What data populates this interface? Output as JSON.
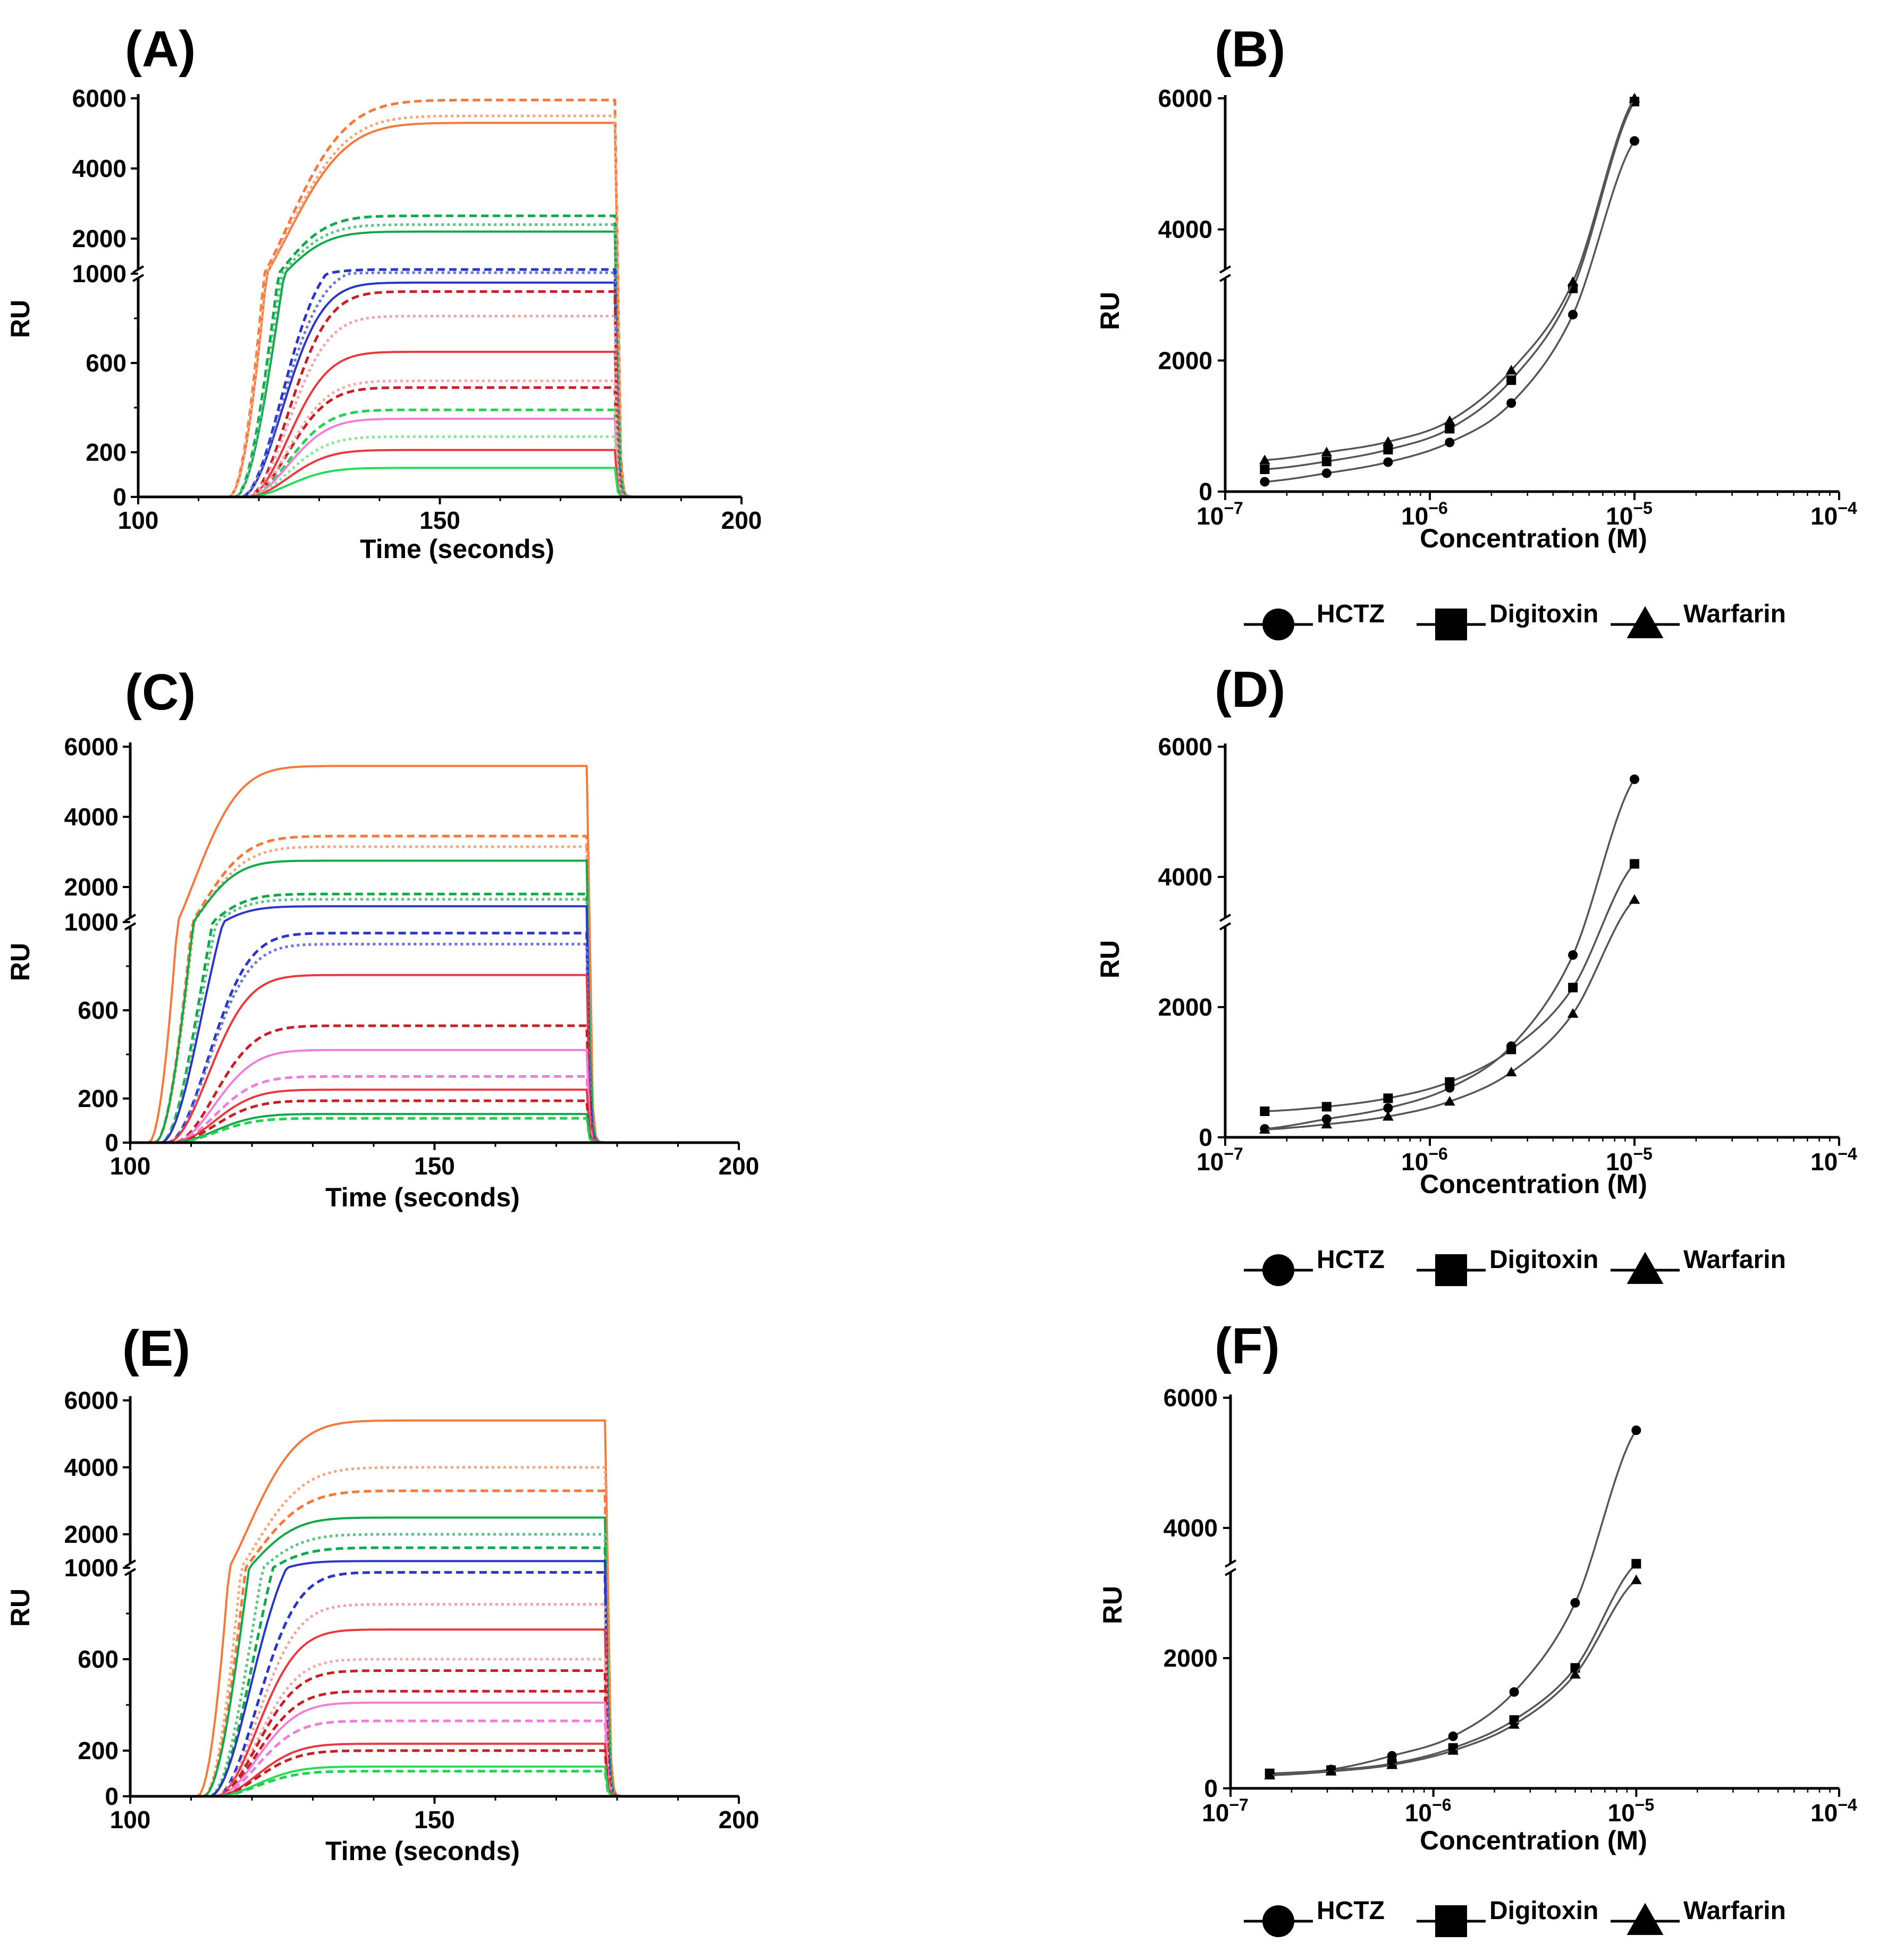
{
  "chart_data": [
    {
      "id": "A",
      "panel_label": "(A)",
      "type": "line",
      "xlabel": "Time (seconds)",
      "ylabel": "RU",
      "xlim": [
        100,
        200
      ],
      "xticks": [
        "100",
        "150",
        "200"
      ],
      "yticks": [
        "0",
        "200",
        "600",
        "1000",
        "2000",
        "4000",
        "6000"
      ],
      "y_axis_break": [
        1000,
        2000
      ],
      "injection": {
        "start": 110,
        "end": 179
      },
      "series": [
        {
          "color": "#f4793b",
          "style": "solid",
          "plateau": 5300,
          "onset": 115,
          "tau": 13
        },
        {
          "color": "#f4793b",
          "style": "dashed",
          "plateau": 5950,
          "onset": 115,
          "tau": 13
        },
        {
          "color": "#f7a57d",
          "style": "dotted",
          "plateau": 5500,
          "onset": 115,
          "tau": 13
        },
        {
          "color": "#0fa84a",
          "style": "solid",
          "plateau": 2200,
          "onset": 116,
          "tau": 10
        },
        {
          "color": "#0fa84a",
          "style": "dashed",
          "plateau": 2650,
          "onset": 116,
          "tau": 10
        },
        {
          "color": "#5cc27f",
          "style": "dotted",
          "plateau": 2400,
          "onset": 116,
          "tau": 10
        },
        {
          "color": "#2b35c6",
          "style": "solid",
          "plateau": 960,
          "onset": 117,
          "tau": 9
        },
        {
          "color": "#2b35c6",
          "style": "dashed",
          "plateau": 1120,
          "onset": 117,
          "tau": 9
        },
        {
          "color": "#6a72db",
          "style": "dotted",
          "plateau": 1030,
          "onset": 117,
          "tau": 9
        },
        {
          "color": "#e8393e",
          "style": "solid",
          "plateau": 650,
          "onset": 118,
          "tau": 9
        },
        {
          "color": "#c81f26",
          "style": "dashed",
          "plateau": 920,
          "onset": 118,
          "tau": 9
        },
        {
          "color": "#f2a2a4",
          "style": "dotted",
          "plateau": 810,
          "onset": 118,
          "tau": 9
        },
        {
          "color": "#c81f26",
          "style": "dashed",
          "plateau": 490,
          "onset": 118,
          "tau": 9
        },
        {
          "color": "#25d052",
          "style": "dashed",
          "plateau": 390,
          "onset": 118,
          "tau": 9
        },
        {
          "color": "#ee7fd8",
          "style": "solid",
          "plateau": 350,
          "onset": 118,
          "tau": 9
        },
        {
          "color": "#f4a8a8",
          "style": "dotted",
          "plateau": 520,
          "onset": 118,
          "tau": 9
        },
        {
          "color": "#8be39a",
          "style": "dotted",
          "plateau": 270,
          "onset": 118,
          "tau": 9
        },
        {
          "color": "#e8393e",
          "style": "solid",
          "plateau": 210,
          "onset": 118,
          "tau": 9
        },
        {
          "color": "#22dd55",
          "style": "solid",
          "plateau": 130,
          "onset": 118,
          "tau": 9
        }
      ]
    },
    {
      "id": "B",
      "panel_label": "(B)",
      "type": "scatter",
      "xlabel": "Concentration (M)",
      "ylabel": "RU",
      "xscale": "log",
      "xlim_exp": [
        -7,
        -4
      ],
      "xticks": [
        "10",
        "10",
        "10",
        "10"
      ],
      "xtick_exp": [
        "−7",
        "−6",
        "−5",
        "−4"
      ],
      "yticks": [
        "0",
        "2000",
        "4000",
        "6000"
      ],
      "ylim": [
        0,
        6000
      ],
      "x": [
        1.56e-07,
        3.13e-07,
        6.25e-07,
        1.25e-06,
        2.5e-06,
        5e-06,
        1e-05
      ],
      "series": [
        {
          "name": "HCTZ",
          "marker": "circle",
          "values": [
            150,
            280,
            450,
            750,
            1350,
            2700,
            5350
          ]
        },
        {
          "name": "Digitoxin",
          "marker": "square",
          "values": [
            340,
            460,
            640,
            960,
            1700,
            3100,
            5950
          ]
        },
        {
          "name": "Warfarin",
          "marker": "triangle",
          "values": [
            480,
            600,
            760,
            1080,
            1850,
            3200,
            6000
          ]
        }
      ]
    },
    {
      "id": "C",
      "panel_label": "(C)",
      "type": "line",
      "xlabel": "Time (seconds)",
      "ylabel": "RU",
      "xlim": [
        100,
        200
      ],
      "xticks": [
        "100",
        "150",
        "200"
      ],
      "yticks": [
        "0",
        "200",
        "600",
        "1000",
        "2000",
        "4000",
        "6000"
      ],
      "y_axis_break": [
        1000,
        2000
      ],
      "injection": {
        "start": 102,
        "end": 175
      },
      "series": [
        {
          "color": "#f4793b",
          "style": "solid",
          "plateau": 5450,
          "onset": 103,
          "tau": 10
        },
        {
          "color": "#f4793b",
          "style": "dashed",
          "plateau": 3450,
          "onset": 104,
          "tau": 10
        },
        {
          "color": "#f7a57d",
          "style": "dotted",
          "plateau": 3150,
          "onset": 104,
          "tau": 10
        },
        {
          "color": "#0fa84a",
          "style": "solid",
          "plateau": 2750,
          "onset": 104,
          "tau": 9
        },
        {
          "color": "#0fa84a",
          "style": "dashed",
          "plateau": 1800,
          "onset": 105,
          "tau": 9
        },
        {
          "color": "#5cc27f",
          "style": "dotted",
          "plateau": 1650,
          "onset": 105,
          "tau": 9
        },
        {
          "color": "#2b35c6",
          "style": "solid",
          "plateau": 1450,
          "onset": 105,
          "tau": 9
        },
        {
          "color": "#2b35c6",
          "style": "dashed",
          "plateau": 950,
          "onset": 106,
          "tau": 9
        },
        {
          "color": "#6a72db",
          "style": "dotted",
          "plateau": 900,
          "onset": 106,
          "tau": 9
        },
        {
          "color": "#e8393e",
          "style": "solid",
          "plateau": 760,
          "onset": 106,
          "tau": 9
        },
        {
          "color": "#c81f26",
          "style": "dashed",
          "plateau": 530,
          "onset": 107,
          "tau": 9
        },
        {
          "color": "#ee7fd8",
          "style": "solid",
          "plateau": 420,
          "onset": 107,
          "tau": 9
        },
        {
          "color": "#ee7fd8",
          "style": "dashed",
          "plateau": 300,
          "onset": 107,
          "tau": 9
        },
        {
          "color": "#e8393e",
          "style": "solid",
          "plateau": 240,
          "onset": 107,
          "tau": 9
        },
        {
          "color": "#c81f26",
          "style": "dashed",
          "plateau": 190,
          "onset": 107,
          "tau": 9
        },
        {
          "color": "#0fa84a",
          "style": "solid",
          "plateau": 130,
          "onset": 107,
          "tau": 9
        },
        {
          "color": "#25d052",
          "style": "dashed",
          "plateau": 110,
          "onset": 107,
          "tau": 9
        }
      ]
    },
    {
      "id": "D",
      "panel_label": "(D)",
      "type": "scatter",
      "xlabel": "Concentration (M)",
      "ylabel": "RU",
      "xscale": "log",
      "xlim_exp": [
        -7,
        -4
      ],
      "xticks": [
        "10",
        "10",
        "10",
        "10"
      ],
      "xtick_exp": [
        "−7",
        "−6",
        "−5",
        "−4"
      ],
      "yticks": [
        "0",
        "2000",
        "4000",
        "6000"
      ],
      "ylim": [
        0,
        6000
      ],
      "x": [
        1.56e-07,
        3.13e-07,
        6.25e-07,
        1.25e-06,
        2.5e-06,
        5e-06,
        1e-05
      ],
      "series": [
        {
          "name": "HCTZ",
          "marker": "circle",
          "values": [
            130,
            280,
            450,
            760,
            1400,
            2800,
            5500
          ]
        },
        {
          "name": "Digitoxin",
          "marker": "square",
          "values": [
            400,
            470,
            600,
            850,
            1350,
            2300,
            4200
          ]
        },
        {
          "name": "Warfarin",
          "marker": "triangle",
          "values": [
            120,
            200,
            320,
            550,
            1000,
            1900,
            3650
          ]
        }
      ]
    },
    {
      "id": "E",
      "panel_label": "(E)",
      "type": "line",
      "xlabel": "Time (seconds)",
      "ylabel": "RU",
      "xlim": [
        100,
        200
      ],
      "xticks": [
        "100",
        "150",
        "200"
      ],
      "yticks": [
        "0",
        "200",
        "600",
        "1000",
        "2000",
        "4000",
        "6000"
      ],
      "y_axis_break": [
        1000,
        2000
      ],
      "injection": {
        "start": 108,
        "end": 178
      },
      "series": [
        {
          "color": "#f4793b",
          "style": "solid",
          "plateau": 5400,
          "onset": 111,
          "tau": 11
        },
        {
          "color": "#f7a57d",
          "style": "dotted",
          "plateau": 4000,
          "onset": 112,
          "tau": 11
        },
        {
          "color": "#f4793b",
          "style": "dashed",
          "plateau": 3300,
          "onset": 112,
          "tau": 11
        },
        {
          "color": "#0fa84a",
          "style": "solid",
          "plateau": 2500,
          "onset": 112,
          "tau": 10
        },
        {
          "color": "#5cc27f",
          "style": "dotted",
          "plateau": 2000,
          "onset": 113,
          "tau": 10
        },
        {
          "color": "#0fa84a",
          "style": "dashed",
          "plateau": 1600,
          "onset": 113,
          "tau": 10
        },
        {
          "color": "#2b35c6",
          "style": "solid",
          "plateau": 1200,
          "onset": 113,
          "tau": 9
        },
        {
          "color": "#2b35c6",
          "style": "dashed",
          "plateau": 980,
          "onset": 114,
          "tau": 9
        },
        {
          "color": "#f2a2a4",
          "style": "dotted",
          "plateau": 840,
          "onset": 114,
          "tau": 9
        },
        {
          "color": "#e8393e",
          "style": "solid",
          "plateau": 730,
          "onset": 114,
          "tau": 9
        },
        {
          "color": "#f4a8a8",
          "style": "dotted",
          "plateau": 600,
          "onset": 114,
          "tau": 9
        },
        {
          "color": "#c81f26",
          "style": "dashed",
          "plateau": 550,
          "onset": 114,
          "tau": 9
        },
        {
          "color": "#c81f26",
          "style": "dashed",
          "plateau": 460,
          "onset": 114,
          "tau": 9
        },
        {
          "color": "#ee7fd8",
          "style": "solid",
          "plateau": 410,
          "onset": 114,
          "tau": 9
        },
        {
          "color": "#ee7fd8",
          "style": "dashed",
          "plateau": 330,
          "onset": 114,
          "tau": 9
        },
        {
          "color": "#e8393e",
          "style": "solid",
          "plateau": 230,
          "onset": 114,
          "tau": 9
        },
        {
          "color": "#c81f26",
          "style": "dashed",
          "plateau": 200,
          "onset": 114,
          "tau": 9
        },
        {
          "color": "#22dd55",
          "style": "solid",
          "plateau": 130,
          "onset": 114,
          "tau": 9
        },
        {
          "color": "#25d052",
          "style": "dashed",
          "plateau": 110,
          "onset": 114,
          "tau": 9
        }
      ]
    },
    {
      "id": "F",
      "panel_label": "(F)",
      "type": "scatter",
      "xlabel": "Concentration (M)",
      "ylabel": "RU",
      "xscale": "log",
      "xlim_exp": [
        -7,
        -4
      ],
      "xticks": [
        "10",
        "10",
        "10",
        "10"
      ],
      "xtick_exp": [
        "−7",
        "−6",
        "−5",
        "−4"
      ],
      "yticks": [
        "0",
        "2000",
        "4000",
        "6000"
      ],
      "ylim": [
        0,
        6000
      ],
      "x": [
        1.56e-07,
        3.13e-07,
        6.25e-07,
        1.25e-06,
        2.5e-06,
        5e-06,
        1e-05
      ],
      "series": [
        {
          "name": "HCTZ",
          "marker": "circle",
          "values": [
            220,
            290,
            500,
            800,
            1480,
            2850,
            5500
          ]
        },
        {
          "name": "Digitoxin",
          "marker": "square",
          "values": [
            230,
            280,
            380,
            620,
            1050,
            1850,
            3450
          ]
        },
        {
          "name": "Warfarin",
          "marker": "triangle",
          "values": [
            200,
            260,
            360,
            580,
            980,
            1750,
            3200
          ]
        }
      ]
    }
  ],
  "legend": {
    "items": [
      {
        "label": "HCTZ",
        "marker": "circle"
      },
      {
        "label": "Digitoxin",
        "marker": "square"
      },
      {
        "label": "Warfarin",
        "marker": "triangle"
      }
    ]
  }
}
